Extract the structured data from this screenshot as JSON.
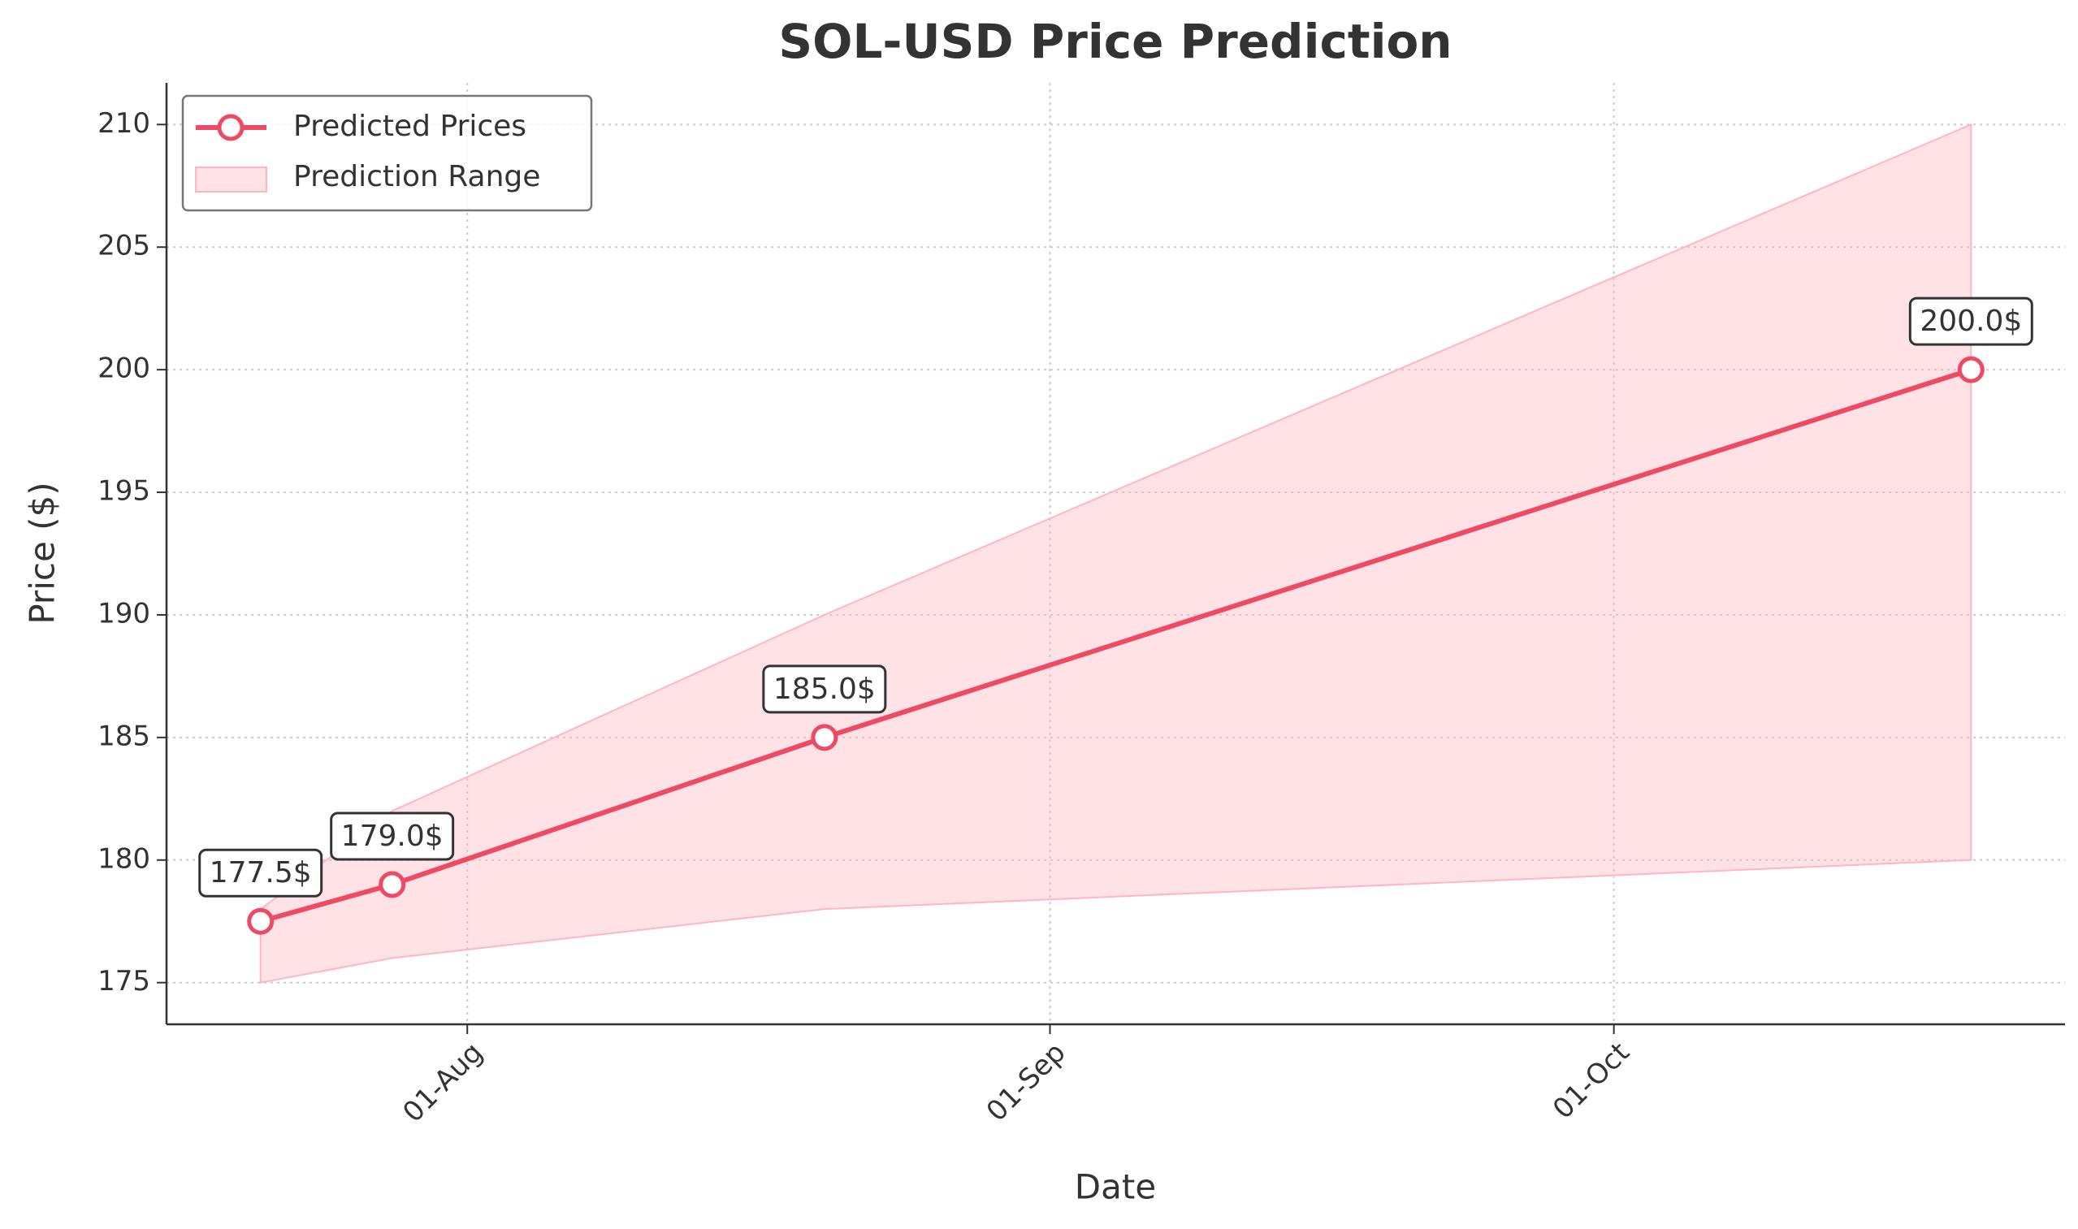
{
  "chart_data": {
    "type": "line",
    "title": "SOL-USD Price Prediction",
    "x_label": "Date",
    "y_label": "Price ($)",
    "x": [
      "07-21",
      "07-28",
      "08-20",
      "10-20"
    ],
    "series": [
      {
        "name": "Predicted Prices",
        "color": "#ef4a63",
        "values": [
          177.5,
          179.0,
          185.0,
          200.0
        ],
        "value_labels": [
          "177.5$",
          "179.0$",
          "185.0$",
          "200.0$"
        ]
      }
    ],
    "range": {
      "name": "Prediction Range",
      "color": "#ffb6c1",
      "lower": [
        175,
        176,
        178,
        180
      ],
      "upper": [
        178,
        182,
        190,
        210
      ]
    },
    "xlim": [
      "07-16",
      "10-25"
    ],
    "ylim": [
      173.3,
      211.7
    ],
    "xticks": [
      {
        "value": "08-01",
        "label": "01-Aug"
      },
      {
        "value": "09-01",
        "label": "01-Sep"
      },
      {
        "value": "10-01",
        "label": "01-Oct"
      }
    ],
    "yticks": [
      175,
      180,
      185,
      190,
      195,
      200,
      205,
      210
    ],
    "grid": true,
    "legend": "upper left"
  }
}
